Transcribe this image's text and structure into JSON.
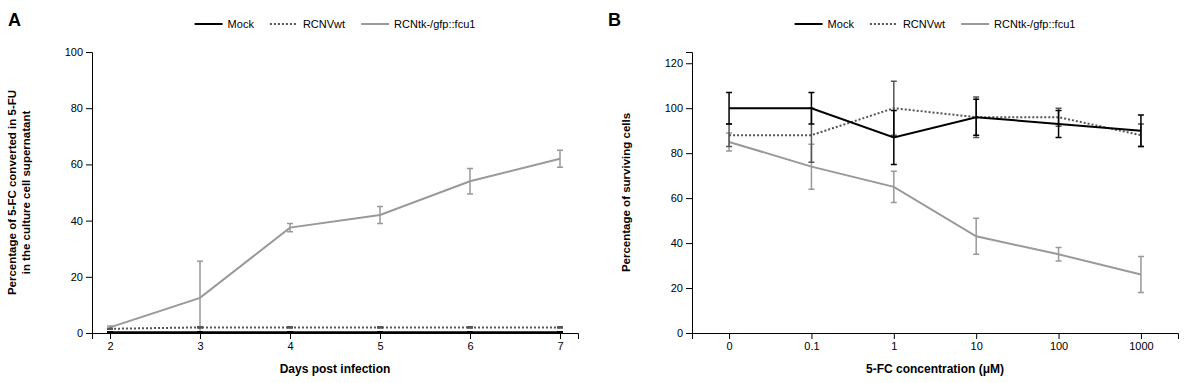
{
  "chart_data": [
    {
      "type": "line",
      "title": "A",
      "x_label": "Days post infection",
      "y_label": "Percentage of 5-FC converted in 5-FU\nin the culture cell supernatant",
      "x": [
        2,
        3,
        4,
        5,
        6,
        7
      ],
      "xlim": [
        1.8,
        7.2
      ],
      "xticks": [
        2,
        3,
        4,
        5,
        6,
        7
      ],
      "ylim": [
        0,
        100
      ],
      "yticks": [
        0,
        20,
        40,
        60,
        80,
        100
      ],
      "grid": false,
      "legend": "top",
      "series": [
        {
          "name": "Mock",
          "color": "#000000",
          "line_style": "solid",
          "values": [
            0.3,
            0.3,
            0.3,
            0.3,
            0.3,
            0.3
          ],
          "errors": [
            0.15,
            0.15,
            0.15,
            0.15,
            0.15,
            0.15
          ]
        },
        {
          "name": "RCNVwt",
          "color": "#555555",
          "line_style": "dotted",
          "values": [
            1.5,
            2.0,
            2.0,
            2.0,
            2.0,
            2.0
          ],
          "errors": [
            0.2,
            0.2,
            0.2,
            0.2,
            0.2,
            0.2
          ]
        },
        {
          "name": "RCNtk-/gfp::fcu1",
          "color": "#999999",
          "line_style": "solid",
          "values": [
            2.0,
            12.5,
            37.5,
            42.0,
            54.0,
            62.0
          ],
          "errors": [
            0.5,
            13.0,
            1.5,
            3.0,
            4.5,
            3.0
          ]
        }
      ]
    },
    {
      "type": "line",
      "title": "B",
      "x_label": "5-FC concentration (μM)",
      "y_label": "Percentage of surviving cells",
      "categories": [
        "0",
        "0.1",
        "1",
        "10",
        "100",
        "1000"
      ],
      "ylim": [
        0,
        125
      ],
      "yticks": [
        0,
        20,
        40,
        60,
        80,
        100,
        120
      ],
      "grid": false,
      "legend": "top",
      "series": [
        {
          "name": "Mock",
          "color": "#000000",
          "line_style": "solid",
          "values": [
            100.0,
            100.0,
            87.0,
            96.0,
            93.0,
            90.0
          ],
          "errors": [
            7.0,
            7.0,
            12.0,
            8.0,
            6.0,
            7.0
          ]
        },
        {
          "name": "RCNVwt",
          "color": "#555555",
          "line_style": "dotted",
          "values": [
            88.0,
            88.0,
            100.0,
            96.0,
            96.0,
            88.0
          ],
          "errors": [
            5.0,
            12.0,
            12.0,
            9.0,
            4.0,
            5.0
          ]
        },
        {
          "name": "RCNtk-/gfp::fcu1",
          "color": "#999999",
          "line_style": "solid",
          "values": [
            85.0,
            74.0,
            65.0,
            43.0,
            35.0,
            26.0
          ],
          "errors": [
            4.0,
            10.0,
            7.0,
            8.0,
            3.0,
            8.0
          ]
        }
      ]
    }
  ]
}
